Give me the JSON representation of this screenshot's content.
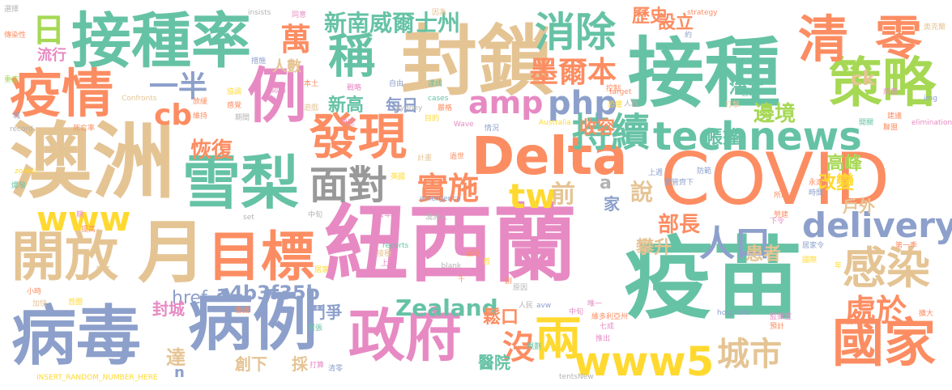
{
  "palette": {
    "teal": "#66c2a5",
    "orange": "#fc8d62",
    "blue": "#8da0cb",
    "pink": "#e78ac3",
    "green": "#a6d854",
    "yellow": "#ffd92f",
    "tan": "#e5c494",
    "gray": "#b3b3b3"
  },
  "words": {
    "niuxilan": "紐西蘭",
    "yimiao": "疫苗",
    "covid": "COVID",
    "aozhou": "澳洲",
    "jiezhong": "接種",
    "jiezhonglv": "接種率",
    "fengsuo": "封鎖",
    "delta": "Delta",
    "bingdu": "病毒",
    "bingli": "病例",
    "li": "例",
    "yue": "月",
    "xueli": "雪梨",
    "mubiao": "目標",
    "kaifang": "開放",
    "yiqing": "疫情",
    "zhengfu": "政府",
    "guojia": "國家",
    "celue": "策略",
    "qing": "清",
    "ling": "零",
    "xiaochu": "消除",
    "cheng": "稱",
    "faxian": "發現",
    "mianDui": "面對",
    "technews": "technews",
    "delivery": "delivery",
    "www5": "www5",
    "www": "www",
    "ganran": "感染",
    "chixu": "持續",
    "amp": "amp",
    "php": "php",
    "tw": "tw",
    "shishi": "實施",
    "renkou": "人口",
    "chuyu": "處於",
    "liang": "兩",
    "mei": "沒",
    "chengshi": "城市",
    "zealand": "Zealand",
    "ri": "日",
    "wan": "萬",
    "xinnan": "新南威爾士州",
    "moerben": "墨爾本",
    "yiban": "一半",
    "cb": "cb",
    "a4b": "a4b3f35b",
    "href": "href",
    "huifu": "恢復",
    "xingao": "新高",
    "meiri": "每日",
    "lishi": "歷史",
    "sheli": "設立",
    "jingtu": "淨土",
    "ck": "ck",
    "biajing": "邊境",
    "zhangpeng": "帳篷",
    "shourong": "收容",
    "gaofeng": "高峰",
    "gaibian": "改變",
    "huwai": "戶外",
    "buzhang": "部長",
    "pansheng": "攀升",
    "huanzhe": "患者",
    "qian": "前",
    "shuo": "說",
    "jia": "家",
    "a": "a",
    "renshu": "人數",
    "liuxing": "流行",
    "fengcheng": "封城",
    "da": "達",
    "douzheng": "鬥爭",
    "songkou": "鬆口",
    "chuangxia": "創下",
    "cai": "採",
    "yiyuan": "醫院",
    "n": "n",
    "small": [
      "選擇",
      "傳染性",
      "重症",
      "城",
      "record",
      "死亡率",
      "zoneid",
      "爆發",
      "期",
      "提高",
      "年底",
      "加快",
      "小時",
      "INSERT_RANDOM_NUMBER_HERE",
      "打算",
      "認為",
      "insists",
      "set",
      "措施",
      "同意",
      "自由",
      "本土",
      "戰略",
      "遊戲",
      "達成",
      "因為",
      "嚴格",
      "目的",
      "Sydney",
      "cases",
      "情況",
      "Australia",
      "Wave",
      "過世",
      "英國",
      "計畫",
      "去年",
      "emergency",
      "中旬",
      "澳洲人",
      "reports",
      "居家",
      "首",
      "千",
      "創",
      "原因",
      "人民",
      "avw",
      "中旬",
      "唯一",
      "七成",
      "推出",
      "規劃",
      "清零",
      "tentsNew",
      "維多利亞州",
      "約",
      "strategy",
      "奧克蘭",
      "img",
      "病患",
      "打擊",
      "恐懼",
      "target",
      "控制",
      "人群",
      "開關",
      "建議",
      "elimination",
      "聯盟",
      "首都",
      "上週",
      "雙管齊下",
      "防範",
      "永遠",
      "時間",
      "所屬",
      "勞建",
      "下令",
      "居家令",
      "國際",
      "hospitals",
      "監獄室",
      "第一季",
      "預計",
      "擴大",
      "年",
      "首圈",
      "緊張",
      "_blank",
      "Confronts",
      "放緩",
      "維持",
      "協調",
      "感覺",
      "期間",
      "快速",
      "接種",
      "上半",
      "最近",
      "會議",
      "死亡",
      "趨勢",
      "降低",
      "上升"
    ]
  }
}
